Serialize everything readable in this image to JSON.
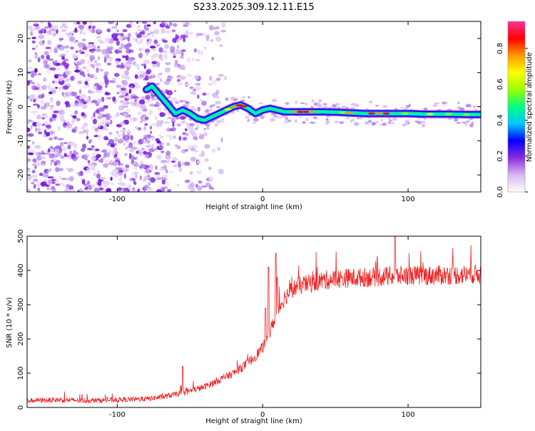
{
  "title": "S233.2025.309.12.11.E15",
  "chart_data": [
    {
      "type": "heatmap",
      "xlabel": "Height of straight line (km)",
      "ylabel": "Frequency (Hz)",
      "xlim": [
        -162,
        150
      ],
      "ylim": [
        -25,
        25
      ],
      "x_ticks": [
        -100,
        0,
        100
      ],
      "x_tick_labels": [
        "-100",
        "0",
        "100"
      ],
      "y_ticks": [
        -20,
        -10,
        0,
        10,
        20
      ],
      "y_tick_labels": [
        "-20",
        "-10",
        "0",
        "10",
        "20"
      ],
      "colorbar": {
        "label": "Normalized spectral amplitude",
        "range": [
          0,
          0.95
        ],
        "ticks": [
          0.0,
          0.2,
          0.4,
          0.6,
          0.8
        ],
        "tick_labels": [
          "0.0",
          "0.2",
          "0.4",
          "0.6",
          "0.8"
        ],
        "colormap": [
          "#ffffff",
          "#d8b8f0",
          "#8a2be2",
          "#0000ff",
          "#00c8ff",
          "#00ff80",
          "#9aff00",
          "#ffff00",
          "#ff9900",
          "#ff0000",
          "#ff3399"
        ]
      },
      "ridge": {
        "x": [
          -80,
          -76,
          -72,
          -68,
          -64,
          -60,
          -55,
          -50,
          -45,
          -40,
          -35,
          -30,
          -25,
          -20,
          -15,
          -10,
          -5,
          0,
          5,
          10,
          15,
          20,
          30,
          40,
          50,
          60,
          70,
          80,
          90,
          100,
          110,
          120,
          130,
          140,
          150
        ],
        "frequency": [
          5,
          6,
          4,
          2,
          0,
          -2,
          -1,
          -2,
          -3.5,
          -4,
          -3,
          -2,
          -1,
          0,
          0.5,
          -0.5,
          -2,
          -1,
          -0.5,
          -1,
          -1.5,
          -1.5,
          -1.5,
          -1.5,
          -1.6,
          -1.8,
          -2,
          -2,
          -2,
          -2,
          -2.2,
          -2.2,
          -2.2,
          -2.3,
          -2.3
        ]
      },
      "noise_region_x": [
        -162,
        -50
      ]
    },
    {
      "type": "line",
      "xlabel": "Height of straight line (km)",
      "ylabel": "SNR (10 * v/v)",
      "xlim": [
        -162,
        150
      ],
      "ylim": [
        0,
        500
      ],
      "x_ticks": [
        -100,
        0,
        100
      ],
      "x_tick_labels": [
        "-100",
        "0",
        "100"
      ],
      "y_ticks": [
        0,
        100,
        200,
        300,
        400,
        500
      ],
      "y_tick_labels": [
        "0",
        "100",
        "200",
        "300",
        "400",
        "500"
      ],
      "series": [
        {
          "name": "SNR",
          "color": "#ee2222",
          "x": [
            -162,
            -140,
            -120,
            -100,
            -80,
            -70,
            -60,
            -50,
            -40,
            -30,
            -20,
            -10,
            -5,
            0,
            5,
            10,
            15,
            20,
            25,
            30,
            40,
            50,
            60,
            70,
            80,
            90,
            100,
            110,
            120,
            130,
            140,
            150
          ],
          "y": [
            20,
            22,
            20,
            22,
            25,
            30,
            38,
            48,
            60,
            80,
            100,
            130,
            150,
            175,
            220,
            280,
            320,
            345,
            355,
            360,
            370,
            375,
            378,
            380,
            382,
            384,
            385,
            385,
            386,
            387,
            388,
            390
          ]
        }
      ],
      "spikes": [
        {
          "x": 2,
          "y": 290
        },
        {
          "x": 4,
          "y": 410
        },
        {
          "x": 9,
          "y": 450
        },
        {
          "x": 10,
          "y": 380
        },
        {
          "x": -55,
          "y": 120
        },
        {
          "x": 91,
          "y": 505
        }
      ]
    }
  ]
}
